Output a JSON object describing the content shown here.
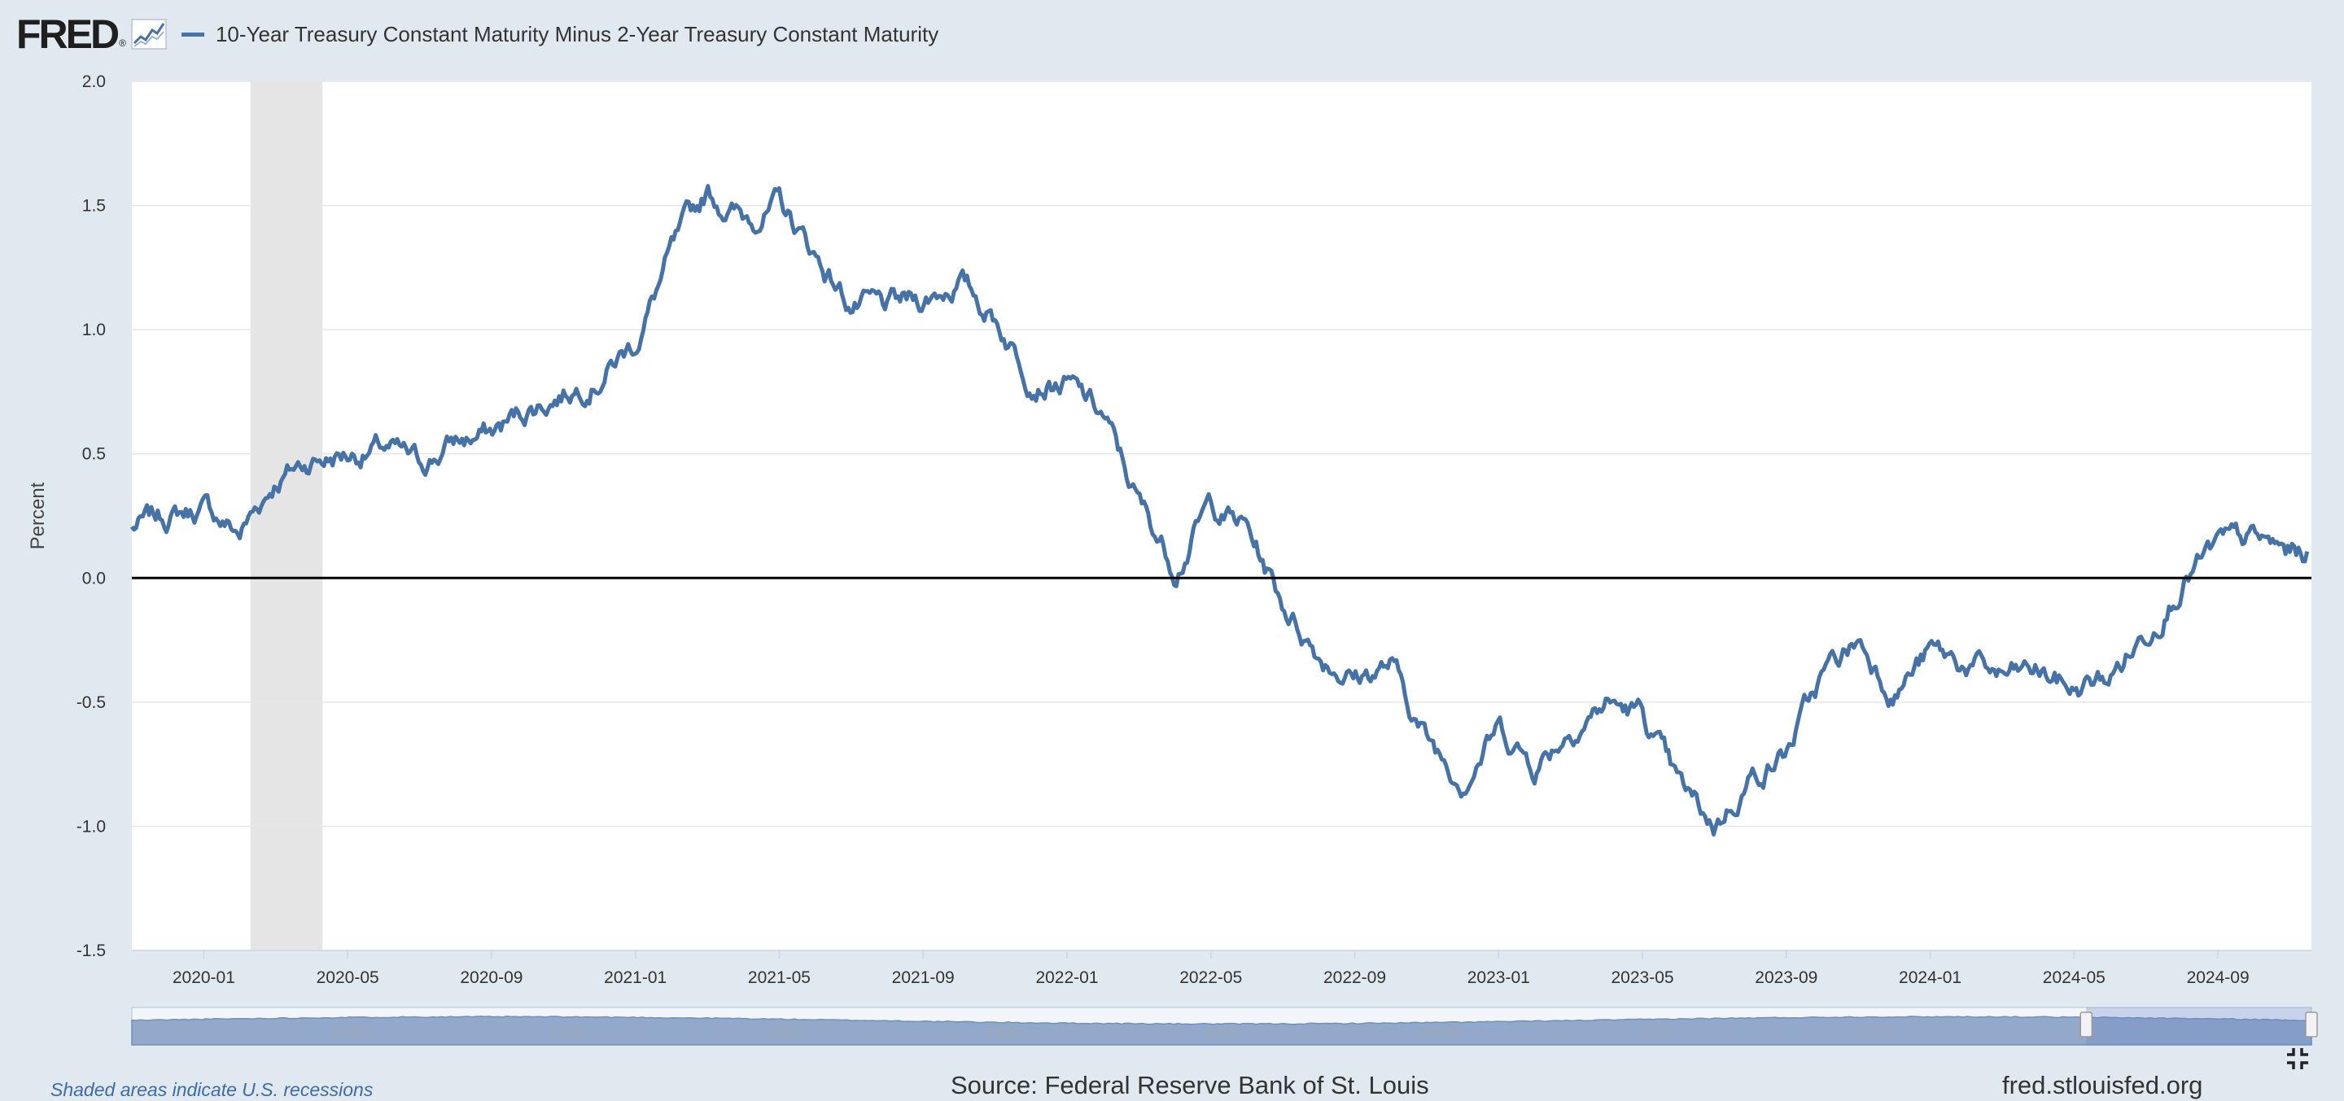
{
  "header": {
    "logo_text": "FRED",
    "logo_reg": "®",
    "series_title": "10-Year Treasury Constant Maturity Minus 2-Year Treasury Constant Maturity"
  },
  "colors": {
    "series": "#4572a7",
    "recession": "#e5e5e5",
    "zero_line": "#000000",
    "grid": "#e6e6e6",
    "navigator_fill": "#93a9cb"
  },
  "chart_data": {
    "type": "line",
    "title": "10-Year Treasury Constant Maturity Minus 2-Year Treasury Constant Maturity",
    "ylabel": "Percent",
    "xlabel": "",
    "ylim": [
      -1.5,
      2.0
    ],
    "yticks": [
      "2.0",
      "1.5",
      "1.0",
      "0.5",
      "0.0",
      "-0.5",
      "-1.0",
      "-1.5"
    ],
    "xticks": [
      "2020-01",
      "2020-05",
      "2020-09",
      "2021-01",
      "2021-05",
      "2021-09",
      "2022-01",
      "2022-05",
      "2022-09",
      "2023-01",
      "2023-05",
      "2023-09",
      "2024-01",
      "2024-05",
      "2024-09"
    ],
    "recession": {
      "start": "2020-02",
      "end": "2020-04"
    },
    "reference_line": 0.0,
    "series": [
      {
        "name": "10-Year Treasury Constant Maturity Minus 2-Year Treasury Constant Maturity",
        "x": [
          "2019-11",
          "2019-12",
          "2020-01",
          "2020-02",
          "2020-03",
          "2020-04",
          "2020-05",
          "2020-06",
          "2020-07",
          "2020-08",
          "2020-09",
          "2020-10",
          "2020-11",
          "2020-12",
          "2021-01",
          "2021-02",
          "2021-03",
          "2021-04",
          "2021-05",
          "2021-06",
          "2021-07",
          "2021-08",
          "2021-09",
          "2021-10",
          "2021-11",
          "2021-12",
          "2022-01",
          "2022-02",
          "2022-03",
          "2022-04",
          "2022-05",
          "2022-06",
          "2022-07",
          "2022-08",
          "2022-09",
          "2022-10",
          "2022-11",
          "2022-12",
          "2023-01",
          "2023-02",
          "2023-03",
          "2023-04",
          "2023-05",
          "2023-06",
          "2023-07",
          "2023-08",
          "2023-09",
          "2023-10",
          "2023-11",
          "2023-12",
          "2024-01",
          "2024-02",
          "2024-03",
          "2024-04",
          "2024-05",
          "2024-06",
          "2024-07",
          "2024-08",
          "2024-09",
          "2024-10",
          "2024-11"
        ],
        "values": [
          0.2,
          0.25,
          0.28,
          0.18,
          0.4,
          0.48,
          0.5,
          0.52,
          0.45,
          0.55,
          0.58,
          0.68,
          0.75,
          0.82,
          0.95,
          1.3,
          1.55,
          1.45,
          1.5,
          1.3,
          1.1,
          1.08,
          1.12,
          1.2,
          1.05,
          0.82,
          0.78,
          0.65,
          0.3,
          0.05,
          0.3,
          0.2,
          -0.1,
          -0.3,
          -0.4,
          -0.35,
          -0.65,
          -0.8,
          -0.6,
          -0.75,
          -0.6,
          -0.5,
          -0.55,
          -0.85,
          -1.0,
          -0.8,
          -0.7,
          -0.4,
          -0.25,
          -0.45,
          -0.3,
          -0.35,
          -0.4,
          -0.38,
          -0.45,
          -0.4,
          -0.22,
          0.0,
          0.12,
          0.15,
          0.1
        ]
      }
    ],
    "navigator": {
      "labels": [
        "1980",
        "1985",
        "1990",
        "1995",
        "2000",
        "2005",
        "2010",
        "2015",
        "2020"
      ]
    }
  },
  "footer": {
    "recession_note": "Shaded areas indicate U.S. recessions",
    "source": "Source: Federal Reserve Bank of St. Louis",
    "site": "fred.stlouisfed.org"
  }
}
